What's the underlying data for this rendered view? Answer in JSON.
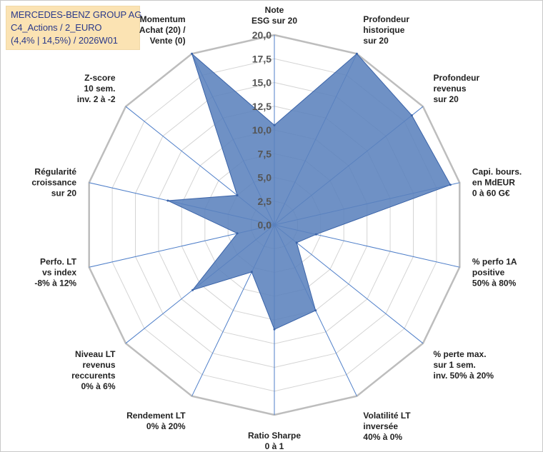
{
  "header": {
    "line1": "MERCEDES-BENZ GROUP AG",
    "line2": "C4_Actions / 2_EURO",
    "line3": "(4,4% | 14,5%) / 2026W01"
  },
  "chart_data": {
    "type": "radar",
    "rmax": 20,
    "tick_values": [
      0,
      2.5,
      5,
      7.5,
      10,
      12.5,
      15,
      17.5,
      20
    ],
    "tick_labels": [
      "0,0",
      "2,5",
      "5,0",
      "7,5",
      "10,0",
      "12,5",
      "15,0",
      "17,5",
      "20,0"
    ],
    "categories": [
      "Note\nESG sur 20",
      "Profondeur\nhistorique\nsur 20",
      "Profondeur\nrevenus\nsur 20",
      "Capi. bours.\nen MdEUR\n0 à 60 G€",
      "% perfo 1A\npositive\n50% à 80%",
      "% perte max.\nsur 1 sem.\ninv. 50% à 20%",
      "Volatilité LT\ninversée\n40% à 0%",
      "Ratio Sharpe\n0 à 1",
      "Rendement LT\n0% à 20%",
      "Niveau LT\nrevenus\nreccurents\n0% à 6%",
      "Perfo. LT\nvs index\n-8% à 12%",
      "Régularité\ncroissance\nsur 20",
      "Z-score\n10 sem.\ninv. 2 à -2",
      "Momentum\nAchat (20) /\nVente (0)"
    ],
    "values": [
      10.5,
      20,
      18.5,
      19,
      4.5,
      3,
      10,
      11,
      5.5,
      11,
      4,
      11.5,
      5,
      20
    ],
    "colors": {
      "fill": "#5b82bd",
      "stroke": "#3a63a8",
      "grid_outer": "#bdbdbd",
      "grid_inner": "#d4d4d4",
      "spoke": "#4f7fc9"
    }
  }
}
